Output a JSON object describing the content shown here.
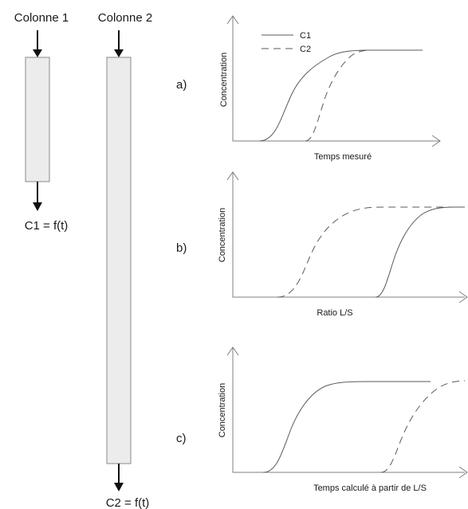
{
  "columns": {
    "col1": {
      "label": "Colonne 1",
      "output": "C1 = f(t)"
    },
    "col2": {
      "label": "Colonne 2",
      "output": "C2 = f(t)"
    }
  },
  "legend": {
    "c1": "C1",
    "c2": "C2"
  },
  "panels": [
    {
      "id": "a",
      "label": "a)",
      "ylabel": "Concentration",
      "xlabel": "Temps mesuré"
    },
    {
      "id": "b",
      "label": "b)",
      "ylabel": "Concentration",
      "xlabel": "Ratio L/S"
    },
    {
      "id": "c",
      "label": "c)",
      "ylabel": "Concentration",
      "xlabel": "Temps calculé à partir de L/S"
    }
  ],
  "colors": {
    "line": "#5a5a5a",
    "axis": "#7f7f7f",
    "column_fill": "#ececec",
    "arrow": "#111111"
  }
}
